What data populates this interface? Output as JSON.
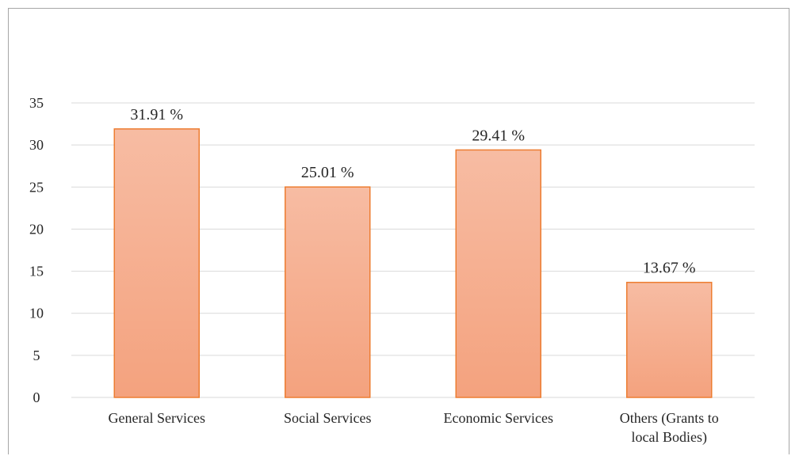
{
  "chart_data": {
    "type": "bar",
    "title": "",
    "xlabel": "",
    "ylabel": "",
    "categories": [
      "General Services",
      "Social Services",
      "Economic Services",
      "Others (Grants to local Bodies)"
    ],
    "category_lines": [
      [
        "General Services"
      ],
      [
        "Social Services"
      ],
      [
        "Economic Services"
      ],
      [
        "Others (Grants to",
        "local Bodies)"
      ]
    ],
    "values": [
      31.91,
      25.01,
      29.41,
      13.67
    ],
    "data_labels": [
      "31.91 %",
      "25.01 %",
      "29.41 %",
      "13.67 %"
    ],
    "yticks": [
      0,
      5,
      10,
      15,
      20,
      25,
      30,
      35
    ],
    "ylim": [
      0,
      35
    ],
    "grid": true,
    "legend": "none",
    "colors": {
      "bar_top": "#f7bca3",
      "bar_bottom": "#f4a27e",
      "bar_edge": "#ed7d31",
      "grid": "#d9d9d9",
      "text": "#262626"
    }
  }
}
